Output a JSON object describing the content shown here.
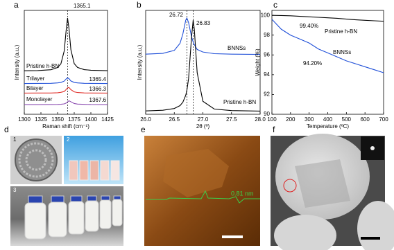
{
  "chart_data": [
    {
      "type": "line",
      "label": "a",
      "xlabel": "Raman shift (cm⁻¹)",
      "ylabel": "Intensity (a.u.)",
      "x": [
        1300,
        1320,
        1340,
        1350,
        1355,
        1360,
        1363,
        1365,
        1367,
        1370,
        1375,
        1380,
        1390,
        1400,
        1425
      ],
      "series": [
        {
          "name": "Pristine h-BN",
          "color": "#000000",
          "values": [
            4.52,
            4.54,
            4.63,
            4.86,
            5.25,
            6.59,
            8.81,
            10.0,
            8.99,
            6.7,
            5.27,
            4.87,
            4.64,
            4.58,
            4.53
          ]
        },
        {
          "name": "Trilayer",
          "color": "#1f4fd8",
          "values": [
            3.2,
            3.21,
            3.22,
            3.26,
            3.31,
            3.45,
            3.68,
            3.79,
            3.71,
            3.46,
            3.31,
            3.26,
            3.22,
            3.21,
            3.2
          ]
        },
        {
          "name": "Bilayer",
          "color": "#e0302a",
          "values": [
            2.2,
            2.21,
            2.21,
            2.24,
            2.28,
            2.37,
            2.58,
            2.75,
            2.79,
            2.56,
            2.33,
            2.26,
            2.22,
            2.21,
            2.2
          ]
        },
        {
          "name": "Monolayer",
          "color": "#8a4bb0",
          "values": [
            1.0,
            1.0,
            1.01,
            1.02,
            1.04,
            1.08,
            1.17,
            1.28,
            1.4,
            1.3,
            1.12,
            1.06,
            1.03,
            1.01,
            1.0
          ]
        }
      ],
      "annotations": [
        "1365.1",
        "1365.4",
        "1366.3",
        "1367.6"
      ],
      "vlines": [
        1365.1
      ],
      "xlim": [
        1300,
        1425
      ],
      "xticks": [
        1300,
        1325,
        1350,
        1375,
        1400,
        1425
      ],
      "ylim": [
        0,
        10.8
      ]
    },
    {
      "type": "line",
      "label": "b",
      "xlabel": "2θ (º)",
      "ylabel": "Intensity (a.u.)",
      "x": [
        26.0,
        26.3,
        26.5,
        26.6,
        26.65,
        26.7,
        26.72,
        26.75,
        26.8,
        26.83,
        26.85,
        26.9,
        27.0,
        27.2,
        27.5,
        28.0
      ],
      "series": [
        {
          "name": "BNNSs",
          "color": "#1f4fd8",
          "values": [
            6.25,
            6.33,
            6.64,
            7.37,
            8.35,
            9.78,
            10.0,
            9.53,
            8.1,
            7.51,
            7.24,
            6.74,
            6.47,
            6.3,
            6.25,
            6.22
          ]
        },
        {
          "name": "Pristine h-BN",
          "color": "#000000",
          "values": [
            0.35,
            0.42,
            0.6,
            0.9,
            1.25,
            1.97,
            2.48,
            3.72,
            7.9,
            9.8,
            8.85,
            4.32,
            1.35,
            0.54,
            0.38,
            0.33
          ]
        }
      ],
      "annotations": [
        "26.72",
        "26.83"
      ],
      "vlines": [
        26.72,
        26.83
      ],
      "xlim": [
        26.0,
        28.0
      ],
      "xticks": [
        {
          "value": 26,
          "label": "26.0"
        },
        26.5,
        {
          "value": 27,
          "label": "27.0"
        },
        27.5,
        {
          "value": 28,
          "label": "28.0"
        }
      ],
      "ylim": [
        0,
        10.8
      ]
    },
    {
      "type": "line",
      "label": "c",
      "xlabel": "Temperature (ºC)",
      "ylabel": "Weight (%)",
      "x": [
        100,
        150,
        200,
        250,
        300,
        350,
        400,
        450,
        500,
        550,
        600,
        650,
        700
      ],
      "series": [
        {
          "name": "Pristine h-BN",
          "color": "#000000",
          "values": [
            100,
            99.98,
            99.95,
            99.9,
            99.85,
            99.8,
            99.75,
            99.7,
            99.62,
            99.55,
            99.5,
            99.45,
            99.4
          ]
        },
        {
          "name": "BNNSs",
          "color": "#1f4fd8",
          "values": [
            99.6,
            98.6,
            98.0,
            97.6,
            97.2,
            96.6,
            96.2,
            95.8,
            95.4,
            95.1,
            94.8,
            94.5,
            94.2
          ]
        }
      ],
      "annotations": [
        "99.40%",
        "94.20%"
      ],
      "xlim": [
        100,
        700
      ],
      "xticks": [
        100,
        200,
        300,
        400,
        500,
        600,
        700
      ],
      "ylim": [
        90,
        100.5
      ],
      "yticks": [
        90,
        92,
        94,
        96,
        98,
        100
      ]
    }
  ],
  "images": [
    {
      "label": "d",
      "parts": [
        "1",
        "2",
        "3"
      ]
    },
    {
      "label": "e",
      "annotation": "0.81 nm"
    },
    {
      "label": "f"
    }
  ]
}
